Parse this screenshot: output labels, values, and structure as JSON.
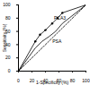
{
  "chart_data": {
    "type": "line",
    "x_label": "1-Specificity (%)",
    "y_label": "Sensitivity (%)",
    "xlim": [
      0,
      100
    ],
    "xticks": [
      0,
      20,
      40,
      60,
      80,
      100
    ],
    "ylim": [
      0,
      100
    ],
    "yticks": [
      0,
      20,
      40,
      60,
      80,
      100
    ],
    "grid": false,
    "series": [
      {
        "name": "PCA3",
        "color": "#000000",
        "marker": "circle",
        "line_style": "solid",
        "x": [
          0,
          25,
          32,
          40,
          50,
          58,
          65,
          100
        ],
        "values": [
          0,
          45,
          55,
          62,
          72,
          80,
          88,
          100
        ]
      },
      {
        "name": "PSA",
        "color": "#000000",
        "marker": "none",
        "line_style": "solid",
        "x": [
          0,
          25,
          35,
          45,
          55,
          65,
          100
        ],
        "values": [
          0,
          35,
          45,
          52,
          60,
          72,
          100
        ]
      },
      {
        "name": null,
        "color": "#000000",
        "marker": "none",
        "line_style": "dashed",
        "x": [
          0,
          100
        ],
        "values": [
          0,
          100
        ]
      }
    ]
  }
}
